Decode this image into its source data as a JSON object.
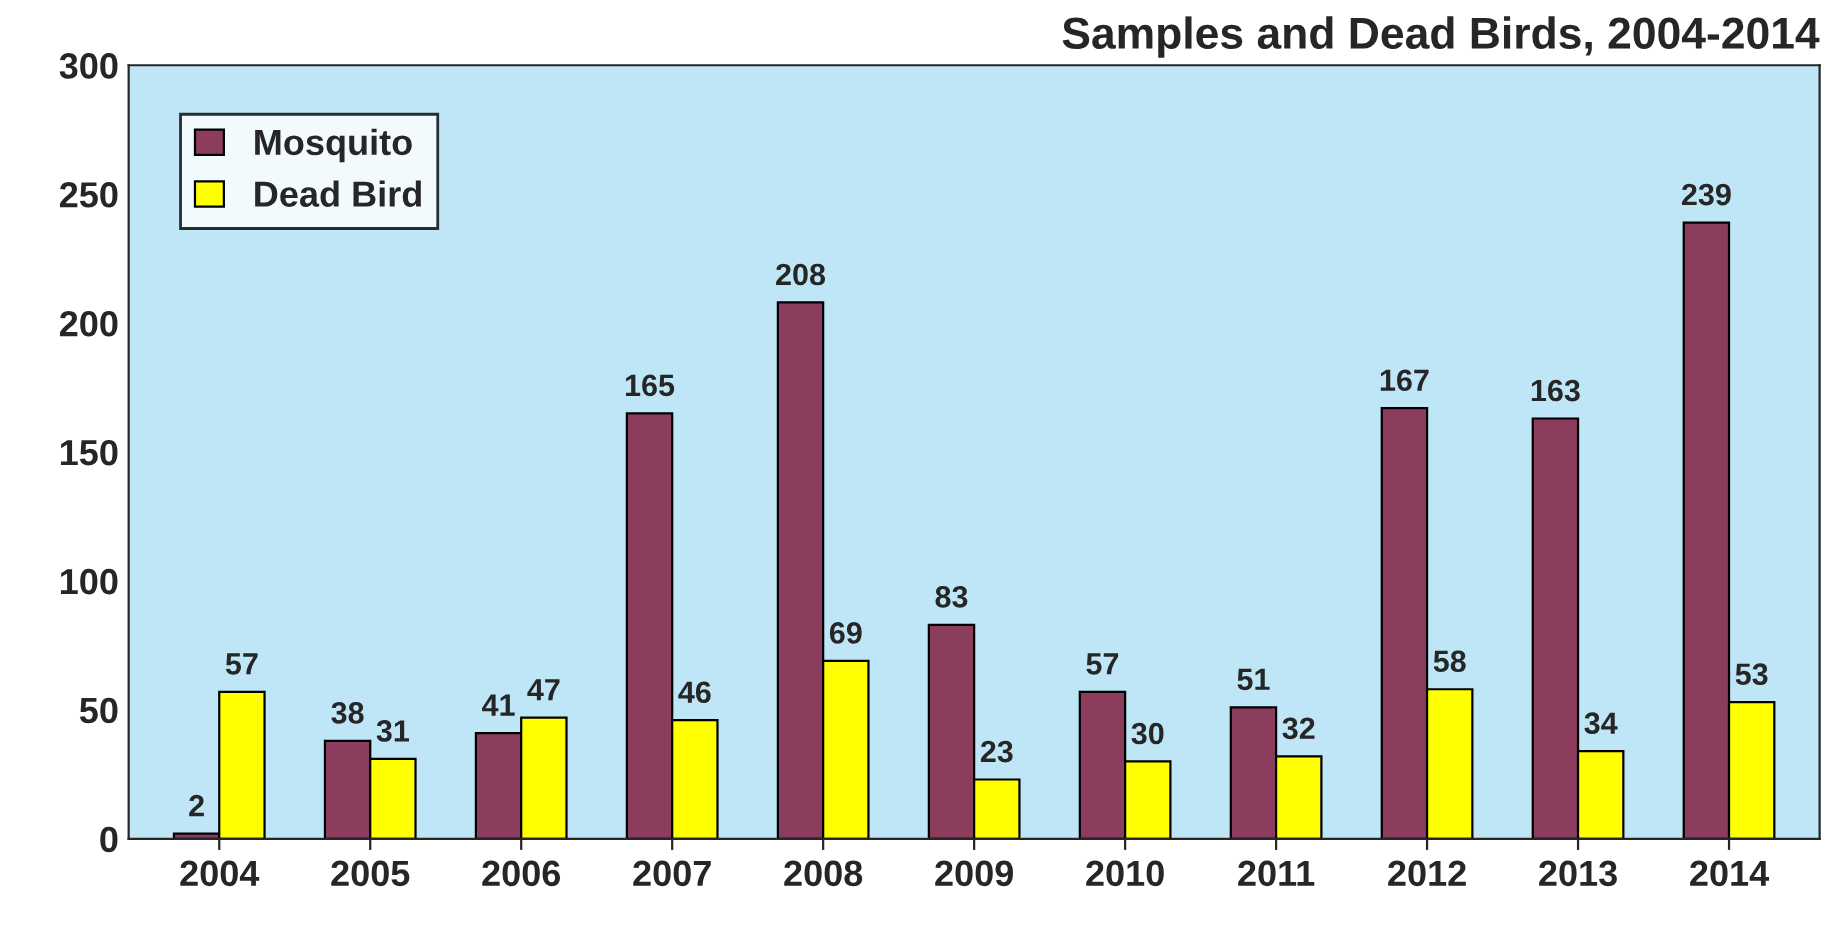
{
  "chart_data": {
    "type": "bar",
    "title": "Samples and Dead Birds, 2004-2014",
    "categories": [
      "2004",
      "2005",
      "2006",
      "2007",
      "2008",
      "2009",
      "2010",
      "2011",
      "2012",
      "2013",
      "2014"
    ],
    "series": [
      {
        "name": "Mosquito",
        "color": "#8c3c5c",
        "values": [
          2,
          38,
          41,
          165,
          208,
          83,
          57,
          51,
          167,
          163,
          239
        ]
      },
      {
        "name": "Dead Bird",
        "color": "#ffff00",
        "values": [
          57,
          31,
          47,
          46,
          69,
          23,
          30,
          32,
          58,
          34,
          53
        ]
      }
    ],
    "ylim": [
      0,
      300
    ],
    "yticks": [
      0,
      50,
      100,
      150,
      200,
      250,
      300
    ],
    "data_labels": true,
    "legend": "top left",
    "grid": false
  }
}
